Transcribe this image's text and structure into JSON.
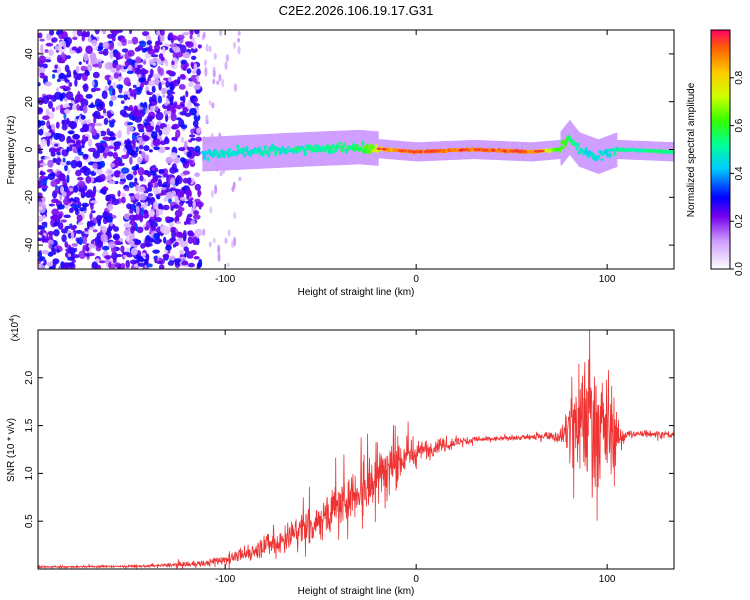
{
  "page_title": "C2E2.2026.106.19.17.G31",
  "colorbar": {
    "label": "Normalized spectral amplitude",
    "ticks": [
      "0.0",
      "0.2",
      "0.4",
      "0.6",
      "0.8"
    ],
    "tick_values": [
      0,
      0.2,
      0.4,
      0.6,
      0.8
    ]
  },
  "chart_data": [
    {
      "type": "heatmap",
      "title": "C2E2.2026.106.19.17.G31",
      "xlabel": "Height of straight line (km)",
      "ylabel": "Frequency (Hz)",
      "xlim": [
        -198,
        135
      ],
      "ylim": [
        -50,
        50
      ],
      "xticks": [
        -100,
        0,
        100
      ],
      "xtick_labels": [
        "-100",
        "0",
        "100"
      ],
      "yticks": [
        -40,
        -20,
        0,
        20,
        40
      ],
      "ytick_labels": [
        "-40",
        "-20",
        "0",
        "20",
        "40"
      ],
      "colorbar_range": [
        0,
        1
      ],
      "description_series": [
        {
          "name": "noise_region",
          "x_range": [
            -198,
            -113
          ],
          "freq_range": [
            -50,
            50
          ],
          "level": 0.25
        },
        {
          "name": "signal_band",
          "x": [
            -112,
            -60,
            -30,
            -15,
            0,
            30,
            60,
            75,
            80,
            85,
            95,
            105,
            135
          ],
          "freq": [
            -2,
            0,
            1,
            0,
            -1,
            0,
            -1,
            0,
            5,
            0,
            -3,
            0,
            -1
          ],
          "level": [
            0.45,
            0.5,
            0.55,
            0.85,
            0.9,
            0.9,
            0.9,
            0.6,
            0.6,
            0.5,
            0.45,
            0.5,
            0.55
          ]
        }
      ]
    },
    {
      "type": "line",
      "xlabel": "Height of straight line (km)",
      "ylabel": "SNR (10 * v/v)",
      "scale_label": "(x10",
      "scale_exponent": "4",
      "scale_close": ")",
      "xlim": [
        -198,
        135
      ],
      "ylim": [
        0,
        25000
      ],
      "xticks": [
        -100,
        0,
        100
      ],
      "xtick_labels": [
        "-100",
        "0",
        "100"
      ],
      "yticks": [
        5000,
        10000,
        15000,
        20000
      ],
      "ytick_labels": [
        "0.5",
        "1.0",
        "1.5",
        "2.0"
      ],
      "color": "#ee3333",
      "series": [
        {
          "name": "SNR envelope",
          "x": [
            -198,
            -140,
            -110,
            -100,
            -90,
            -80,
            -70,
            -60,
            -50,
            -40,
            -30,
            -20,
            -10,
            0,
            10,
            20,
            30,
            40,
            50,
            60,
            70,
            75,
            80,
            85,
            90,
            95,
            100,
            105,
            110,
            120,
            135
          ],
          "y": [
            200,
            300,
            600,
            1000,
            1500,
            2300,
            3000,
            4200,
            5200,
            6800,
            8300,
            9800,
            11200,
            12300,
            12800,
            13200,
            13500,
            13600,
            13700,
            13800,
            14000,
            13800,
            14500,
            16000,
            16500,
            15500,
            14500,
            13500,
            14000,
            14200,
            14000
          ],
          "noise": [
            100,
            150,
            400,
            600,
            900,
            1200,
            1800,
            2200,
            2600,
            3000,
            3200,
            3400,
            2800,
            1500,
            900,
            600,
            400,
            300,
            300,
            300,
            500,
            600,
            4000,
            8000,
            9500,
            8000,
            6000,
            2500,
            600,
            400,
            500
          ]
        }
      ]
    }
  ]
}
